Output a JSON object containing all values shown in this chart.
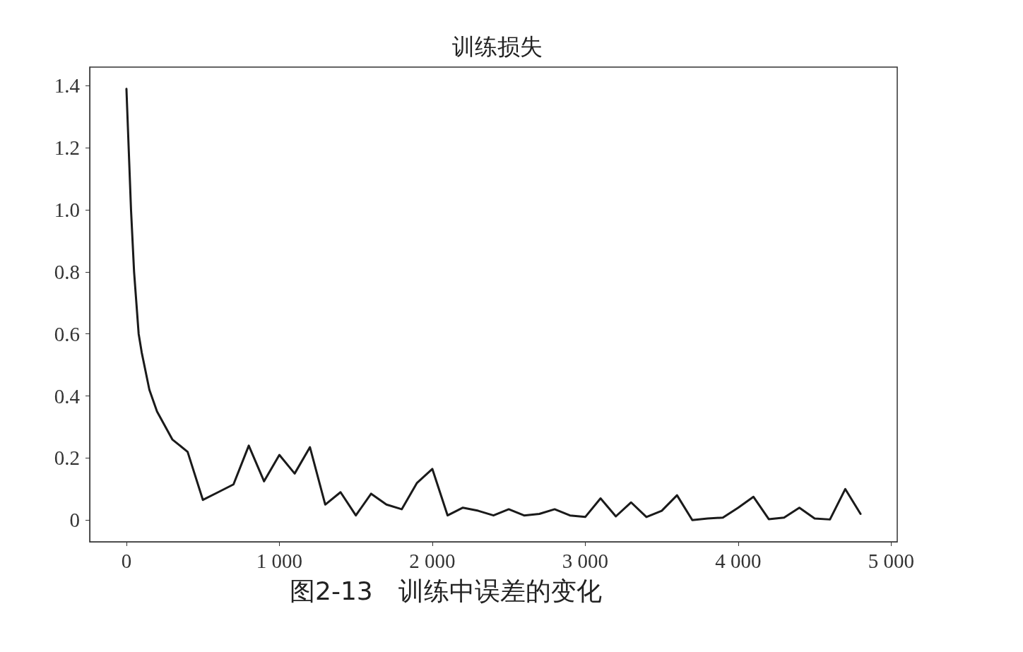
{
  "chart_data": {
    "type": "line",
    "title": "训练损失",
    "annotations": [
      "图2-13　训练中误差的变化"
    ],
    "x": [
      0,
      30,
      50,
      80,
      100,
      150,
      200,
      300,
      400,
      500,
      600,
      700,
      800,
      900,
      1000,
      1100,
      1200,
      1300,
      1400,
      1500,
      1600,
      1700,
      1800,
      1900,
      2000,
      2100,
      2200,
      2300,
      2400,
      2500,
      2600,
      2700,
      2800,
      2900,
      3000,
      3100,
      3200,
      3300,
      3400,
      3500,
      3600,
      3700,
      3800,
      3900,
      4000,
      4100,
      4200,
      4300,
      4400,
      4500,
      4600,
      4700,
      4800
    ],
    "series": [
      {
        "color": "#1a1a1a",
        "values": [
          1.39,
          1.0,
          0.8,
          0.6,
          0.54,
          0.42,
          0.35,
          0.26,
          0.22,
          0.065,
          0.09,
          0.115,
          0.24,
          0.125,
          0.21,
          0.15,
          0.235,
          0.05,
          0.09,
          0.015,
          0.085,
          0.05,
          0.035,
          0.12,
          0.165,
          0.015,
          0.04,
          0.03,
          0.015,
          0.035,
          0.015,
          0.02,
          0.035,
          0.015,
          0.01,
          0.07,
          0.012,
          0.057,
          0.01,
          0.03,
          0.08,
          0.0,
          0.005,
          0.008,
          0.04,
          0.075,
          0.003,
          0.008,
          0.04,
          0.005,
          0.002,
          0.1,
          0.02
        ]
      }
    ],
    "xlim": [
      -240,
      5040
    ],
    "xticks": [
      {
        "value": 0,
        "label": "0"
      },
      {
        "value": 1000,
        "label": "1 000"
      },
      {
        "value": 2000,
        "label": "2 000"
      },
      {
        "value": 3000,
        "label": "3 000"
      },
      {
        "value": 4000,
        "label": "4 000"
      },
      {
        "value": 5000,
        "label": "5 000"
      }
    ],
    "ylim": [
      -0.07,
      1.46
    ],
    "yticks": [
      0,
      0.2,
      0.4,
      0.6,
      0.8,
      {
        "value": 1,
        "label": "1.0"
      },
      1.2,
      1.4
    ],
    "grid": false,
    "marker": "none",
    "line_style": "solid"
  }
}
